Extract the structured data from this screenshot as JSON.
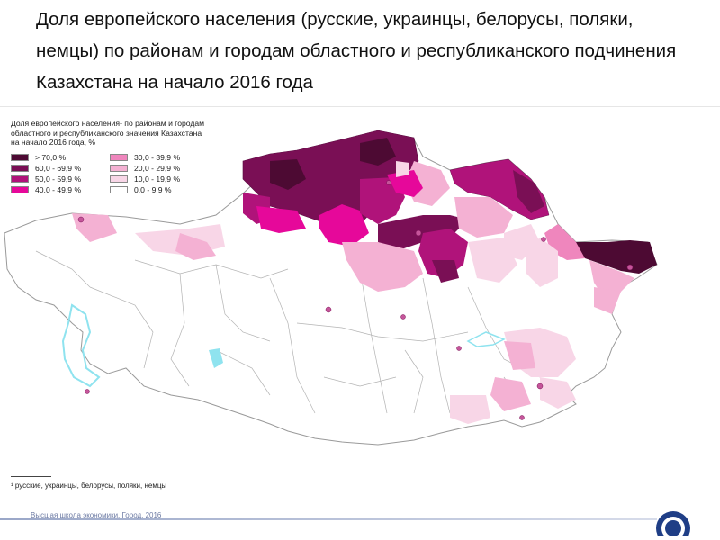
{
  "slide": {
    "title": "Доля европейского населения (русские, украинцы, белорусы, поляки, немцы) по районам и городам областного и республиканского подчинения Казахстана на начало 2016 года"
  },
  "map": {
    "legend": {
      "title_line1": "Доля европейского населения¹ по районам и городам",
      "title_line2": "областного и республиканского значения Казахстана",
      "title_line3": "на начало 2016 года, %",
      "items": [
        {
          "label": "> 70,0 %",
          "color": "#4d0a33"
        },
        {
          "label": "30,0 - 39,9 %",
          "color": "#ef86bd"
        },
        {
          "label": "60,0 - 69,9 %",
          "color": "#7a0f55"
        },
        {
          "label": "20,0 - 29,9 %",
          "color": "#f4b1d3"
        },
        {
          "label": "50,0 - 59,9 %",
          "color": "#b0137a"
        },
        {
          "label": "10,0 - 19,9 %",
          "color": "#f8d6e7"
        },
        {
          "label": "40,0 - 49,9 %",
          "color": "#e6089a"
        },
        {
          "label": "0,0 - 9,9 %",
          "color": "#ffffff"
        }
      ]
    },
    "footnote": "¹ русские, украинцы, белорусы, поляки, немцы",
    "colors": {
      "border": "#aaaaaa",
      "water": "#8fe3ef",
      "city_marker": "#c5559a"
    }
  },
  "footer": {
    "text": "Высшая школа экономики, Город, 2016",
    "logo_icon": "university-seal-icon"
  }
}
